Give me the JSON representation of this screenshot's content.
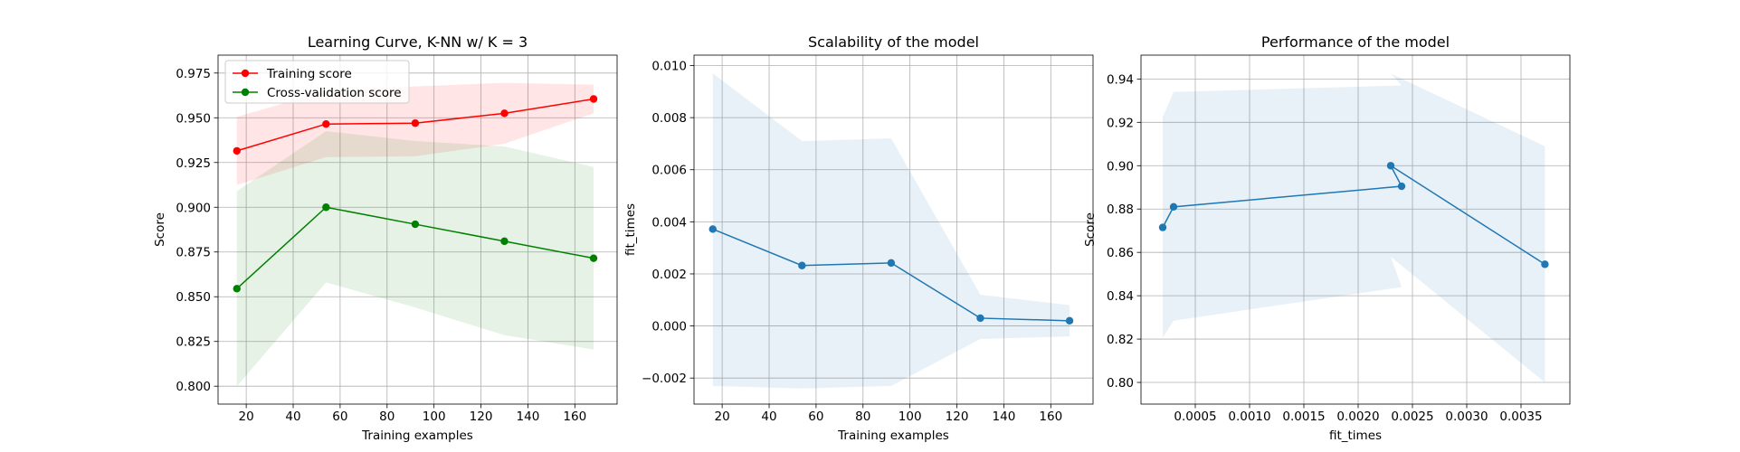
{
  "chart_data": [
    {
      "type": "line",
      "title": "Learning Curve, K-NN w/ K = 3",
      "xlabel": "Training examples",
      "ylabel": "Score",
      "xlim": [
        8,
        178
      ],
      "ylim": [
        0.79,
        0.985
      ],
      "xticks": [
        20,
        40,
        60,
        80,
        100,
        120,
        140,
        160
      ],
      "xtick_labels": [
        "20",
        "40",
        "60",
        "80",
        "100",
        "120",
        "140",
        "160"
      ],
      "yticks": [
        0.8,
        0.825,
        0.85,
        0.875,
        0.9,
        0.925,
        0.95,
        0.975
      ],
      "ytick_labels": [
        "0.800",
        "0.825",
        "0.850",
        "0.875",
        "0.900",
        "0.925",
        "0.950",
        "0.975"
      ],
      "grid": true,
      "legend": "top-left",
      "x": [
        16,
        54,
        92,
        130,
        168
      ],
      "series": [
        {
          "name": "Training score",
          "color": "#ff0000",
          "band_color": "#ff0000",
          "values": [
            0.9315,
            0.9465,
            0.947,
            0.9525,
            0.9605
          ],
          "upper": [
            0.9505,
            0.965,
            0.9675,
            0.9695,
            0.9685
          ],
          "lower": [
            0.9125,
            0.928,
            0.9285,
            0.9355,
            0.9525
          ]
        },
        {
          "name": "Cross-validation score",
          "color": "#008000",
          "band_color": "#008000",
          "values": [
            0.8545,
            0.9,
            0.8905,
            0.881,
            0.8715
          ],
          "upper": [
            0.909,
            0.9425,
            0.937,
            0.934,
            0.9225
          ],
          "lower": [
            0.8,
            0.858,
            0.844,
            0.8285,
            0.8205
          ]
        }
      ]
    },
    {
      "type": "line",
      "title": "Scalability of the model",
      "xlabel": "Training examples",
      "ylabel": "fit_times",
      "xlim": [
        8,
        178
      ],
      "ylim": [
        -0.003,
        0.0104
      ],
      "xticks": [
        20,
        40,
        60,
        80,
        100,
        120,
        140,
        160
      ],
      "xtick_labels": [
        "20",
        "40",
        "60",
        "80",
        "100",
        "120",
        "140",
        "160"
      ],
      "yticks": [
        -0.002,
        0.0,
        0.002,
        0.004,
        0.006,
        0.008,
        0.01
      ],
      "ytick_labels": [
        "−0.002",
        "0.000",
        "0.002",
        "0.004",
        "0.006",
        "0.008",
        "0.010"
      ],
      "grid": true,
      "x": [
        16,
        54,
        92,
        130,
        168
      ],
      "series": [
        {
          "color": "#1f77b4",
          "band_color": "#1f77b4",
          "values": [
            0.00372,
            0.00232,
            0.00242,
            0.0003,
            0.0002
          ],
          "upper": [
            0.0097,
            0.0071,
            0.0072,
            0.0012,
            0.0008
          ],
          "lower": [
            -0.0023,
            -0.0024,
            -0.0023,
            -0.0005,
            -0.0004
          ]
        }
      ]
    },
    {
      "type": "line",
      "title": "Performance of the model",
      "xlabel": "fit_times",
      "ylabel": "Score",
      "xlim": [
        0.0,
        0.00395
      ],
      "ylim": [
        0.79,
        0.951
      ],
      "xticks": [
        0.0005,
        0.001,
        0.0015,
        0.002,
        0.0025,
        0.003,
        0.0035
      ],
      "xtick_labels": [
        "0.0005",
        "0.0010",
        "0.0015",
        "0.0020",
        "0.0025",
        "0.0030",
        "0.0035"
      ],
      "yticks": [
        0.8,
        0.82,
        0.84,
        0.86,
        0.88,
        0.9,
        0.92,
        0.94
      ],
      "ytick_labels": [
        "0.80",
        "0.82",
        "0.84",
        "0.86",
        "0.88",
        "0.90",
        "0.92",
        "0.94"
      ],
      "grid": true,
      "series": [
        {
          "color": "#1f77b4",
          "band_color": "#1f77b4",
          "points": [
            [
              0.0002,
              0.8715
            ],
            [
              0.0003,
              0.881
            ],
            [
              0.0024,
              0.8905
            ],
            [
              0.0023,
              0.9
            ],
            [
              0.00372,
              0.8545
            ]
          ],
          "band": [
            [
              0.0002,
              0.9225
            ],
            [
              0.0003,
              0.934
            ],
            [
              0.0024,
              0.937
            ],
            [
              0.0023,
              0.9425
            ],
            [
              0.00372,
              0.909
            ],
            [
              0.00372,
              0.8
            ],
            [
              0.0023,
              0.858
            ],
            [
              0.0024,
              0.844
            ],
            [
              0.0003,
              0.8285
            ],
            [
              0.0002,
              0.8205
            ]
          ]
        }
      ]
    }
  ]
}
